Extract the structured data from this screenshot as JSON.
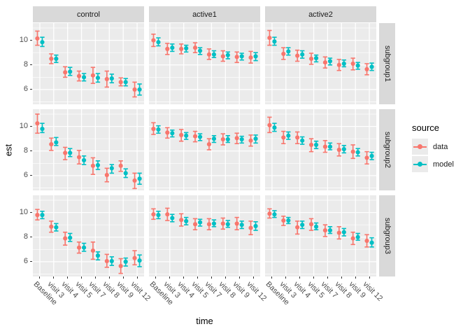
{
  "chart_data": {
    "type": "pointrange-faceted",
    "title": "",
    "xlabel": "time",
    "ylabel": "est",
    "facet_cols": [
      "control",
      "active1",
      "active2"
    ],
    "facet_rows": [
      "subgroup1",
      "subgroup2",
      "subgroup3"
    ],
    "x_categories": [
      "Baseline",
      "visit 3",
      "visit 4",
      "visit 5",
      "visit 7",
      "visit 8",
      "visit 9",
      "visit 12"
    ],
    "y_major_ticks": [
      10,
      8,
      6
    ],
    "y_minor_ticks": [
      11,
      9,
      7,
      5
    ],
    "ylim": [
      4.8,
      11.4
    ],
    "grid": "on",
    "panel_bg": "#ebebeb",
    "strip_bg": "#d9d9d9",
    "grid_color": "#ffffff",
    "legend": {
      "title": "source",
      "position": "right",
      "entries": [
        {
          "label": "data",
          "color": "#F8766D"
        },
        {
          "label": "model",
          "color": "#00BFC4"
        }
      ]
    },
    "panels": [
      {
        "row": "subgroup1",
        "col": "control",
        "data": [
          [
            10.15,
            9.6,
            10.75
          ],
          [
            8.5,
            8.1,
            8.9
          ],
          [
            7.4,
            7.0,
            7.85
          ],
          [
            7.1,
            6.7,
            7.5
          ],
          [
            7.15,
            6.5,
            7.8
          ],
          [
            6.85,
            6.2,
            7.5
          ],
          [
            6.6,
            6.3,
            6.95
          ],
          [
            6.0,
            5.4,
            6.6
          ]
        ],
        "model": [
          [
            9.85,
            9.5,
            10.25
          ],
          [
            8.5,
            8.2,
            8.8
          ],
          [
            7.45,
            7.15,
            7.8
          ],
          [
            7.0,
            6.7,
            7.3
          ],
          [
            6.95,
            6.6,
            7.3
          ],
          [
            6.9,
            6.55,
            7.25
          ],
          [
            6.6,
            6.3,
            6.9
          ],
          [
            6.0,
            5.55,
            6.45
          ]
        ]
      },
      {
        "row": "subgroup1",
        "col": "active1",
        "data": [
          [
            10.0,
            9.5,
            10.5
          ],
          [
            9.3,
            8.85,
            9.75
          ],
          [
            9.3,
            8.9,
            9.7
          ],
          [
            9.4,
            9.0,
            9.8
          ],
          [
            8.85,
            8.45,
            9.3
          ],
          [
            8.7,
            8.3,
            9.15
          ],
          [
            8.65,
            8.2,
            9.05
          ],
          [
            8.6,
            8.15,
            9.1
          ]
        ],
        "model": [
          [
            9.85,
            9.55,
            10.2
          ],
          [
            9.4,
            9.1,
            9.7
          ],
          [
            9.35,
            9.05,
            9.6
          ],
          [
            9.15,
            8.85,
            9.4
          ],
          [
            8.85,
            8.6,
            9.15
          ],
          [
            8.8,
            8.5,
            9.05
          ],
          [
            8.7,
            8.4,
            8.95
          ],
          [
            8.7,
            8.35,
            9.0
          ]
        ]
      },
      {
        "row": "subgroup1",
        "col": "active2",
        "data": [
          [
            10.2,
            9.6,
            10.8
          ],
          [
            8.9,
            8.45,
            9.4
          ],
          [
            8.75,
            8.3,
            9.2
          ],
          [
            8.5,
            8.05,
            8.95
          ],
          [
            8.2,
            7.75,
            8.65
          ],
          [
            8.0,
            7.55,
            8.45
          ],
          [
            8.1,
            7.6,
            8.55
          ],
          [
            7.65,
            7.2,
            8.1
          ]
        ],
        "model": [
          [
            9.9,
            9.6,
            10.25
          ],
          [
            9.1,
            8.8,
            9.4
          ],
          [
            8.85,
            8.55,
            9.15
          ],
          [
            8.55,
            8.25,
            8.8
          ],
          [
            8.3,
            8.0,
            8.55
          ],
          [
            8.1,
            7.85,
            8.4
          ],
          [
            7.95,
            7.65,
            8.2
          ],
          [
            7.85,
            7.55,
            8.15
          ]
        ]
      },
      {
        "row": "subgroup2",
        "col": "control",
        "data": [
          [
            10.25,
            9.45,
            11.0
          ],
          [
            8.55,
            8.05,
            9.05
          ],
          [
            7.85,
            7.3,
            8.3
          ],
          [
            7.5,
            6.95,
            8.05
          ],
          [
            6.8,
            6.1,
            7.45
          ],
          [
            6.05,
            5.5,
            6.6
          ],
          [
            6.8,
            6.35,
            7.2
          ],
          [
            5.6,
            4.95,
            6.2
          ]
        ],
        "model": [
          [
            9.8,
            9.5,
            10.25
          ],
          [
            8.7,
            8.45,
            9.1
          ],
          [
            7.85,
            7.55,
            8.2
          ],
          [
            7.25,
            6.9,
            7.6
          ],
          [
            6.85,
            6.5,
            7.2
          ],
          [
            6.6,
            6.2,
            6.9
          ],
          [
            6.2,
            5.85,
            6.55
          ],
          [
            5.75,
            5.3,
            6.2
          ]
        ]
      },
      {
        "row": "subgroup2",
        "col": "active1",
        "data": [
          [
            9.8,
            9.35,
            10.3
          ],
          [
            9.5,
            9.05,
            9.9
          ],
          [
            9.3,
            8.8,
            9.75
          ],
          [
            9.2,
            8.75,
            9.6
          ],
          [
            8.55,
            8.1,
            9.0
          ],
          [
            8.95,
            8.5,
            9.4
          ],
          [
            9.05,
            8.6,
            9.45
          ],
          [
            8.85,
            8.4,
            9.3
          ]
        ],
        "model": [
          [
            9.75,
            9.45,
            10.05
          ],
          [
            9.45,
            9.15,
            9.7
          ],
          [
            9.25,
            8.95,
            9.5
          ],
          [
            9.15,
            8.85,
            9.4
          ],
          [
            9.0,
            8.7,
            9.25
          ],
          [
            8.95,
            8.7,
            9.25
          ],
          [
            8.95,
            8.65,
            9.2
          ],
          [
            9.0,
            8.65,
            9.3
          ]
        ]
      },
      {
        "row": "subgroup2",
        "col": "active2",
        "data": [
          [
            10.1,
            9.5,
            10.75
          ],
          [
            9.1,
            8.6,
            9.6
          ],
          [
            9.1,
            8.6,
            9.55
          ],
          [
            8.5,
            7.95,
            9.0
          ],
          [
            8.35,
            7.9,
            8.85
          ],
          [
            8.1,
            7.6,
            8.6
          ],
          [
            7.95,
            7.4,
            8.5
          ],
          [
            7.45,
            6.95,
            7.95
          ]
        ],
        "model": [
          [
            9.9,
            9.6,
            10.25
          ],
          [
            9.25,
            8.95,
            9.55
          ],
          [
            8.85,
            8.55,
            9.15
          ],
          [
            8.5,
            8.2,
            8.8
          ],
          [
            8.35,
            8.1,
            8.65
          ],
          [
            8.15,
            7.85,
            8.45
          ],
          [
            7.9,
            7.6,
            8.2
          ],
          [
            7.6,
            7.3,
            7.9
          ]
        ]
      },
      {
        "row": "subgroup3",
        "col": "control",
        "data": [
          [
            9.8,
            9.4,
            10.25
          ],
          [
            8.85,
            8.4,
            9.3
          ],
          [
            7.9,
            7.35,
            8.4
          ],
          [
            7.15,
            6.7,
            7.6
          ],
          [
            6.9,
            6.2,
            7.6
          ],
          [
            6.05,
            5.55,
            6.6
          ],
          [
            5.65,
            5.05,
            6.25
          ],
          [
            6.3,
            5.75,
            6.9
          ]
        ],
        "model": [
          [
            9.8,
            9.5,
            10.1
          ],
          [
            8.8,
            8.5,
            9.1
          ],
          [
            7.95,
            7.65,
            8.3
          ],
          [
            7.15,
            6.85,
            7.5
          ],
          [
            6.5,
            6.15,
            6.8
          ],
          [
            6.05,
            5.7,
            6.4
          ],
          [
            6.0,
            5.65,
            6.3
          ],
          [
            6.1,
            5.6,
            6.55
          ]
        ]
      },
      {
        "row": "subgroup3",
        "col": "active1",
        "data": [
          [
            9.85,
            9.45,
            10.3
          ],
          [
            9.85,
            9.35,
            10.35
          ],
          [
            9.4,
            8.9,
            9.9
          ],
          [
            9.05,
            8.6,
            9.5
          ],
          [
            9.05,
            8.6,
            9.5
          ],
          [
            9.1,
            8.65,
            9.55
          ],
          [
            9.1,
            8.6,
            9.6
          ],
          [
            8.75,
            8.2,
            9.3
          ]
        ],
        "model": [
          [
            9.8,
            9.5,
            10.1
          ],
          [
            9.55,
            9.25,
            9.85
          ],
          [
            9.3,
            9.0,
            9.6
          ],
          [
            9.2,
            8.9,
            9.45
          ],
          [
            9.1,
            8.85,
            9.4
          ],
          [
            9.05,
            8.8,
            9.35
          ],
          [
            9.0,
            8.7,
            9.3
          ],
          [
            8.9,
            8.55,
            9.25
          ]
        ]
      },
      {
        "row": "subgroup3",
        "col": "active2",
        "data": [
          [
            9.9,
            9.55,
            10.3
          ],
          [
            9.35,
            8.95,
            9.7
          ],
          [
            8.8,
            8.25,
            9.3
          ],
          [
            9.05,
            8.55,
            9.5
          ],
          [
            8.55,
            8.05,
            9.0
          ],
          [
            8.35,
            7.85,
            8.85
          ],
          [
            7.9,
            7.4,
            8.4
          ],
          [
            7.7,
            7.2,
            8.2
          ]
        ],
        "model": [
          [
            9.85,
            9.6,
            10.15
          ],
          [
            9.35,
            9.1,
            9.6
          ],
          [
            9.0,
            8.7,
            9.3
          ],
          [
            8.85,
            8.6,
            9.15
          ],
          [
            8.55,
            8.3,
            8.85
          ],
          [
            8.4,
            8.1,
            8.7
          ],
          [
            8.0,
            7.75,
            8.3
          ],
          [
            7.55,
            7.2,
            7.95
          ]
        ]
      }
    ]
  }
}
